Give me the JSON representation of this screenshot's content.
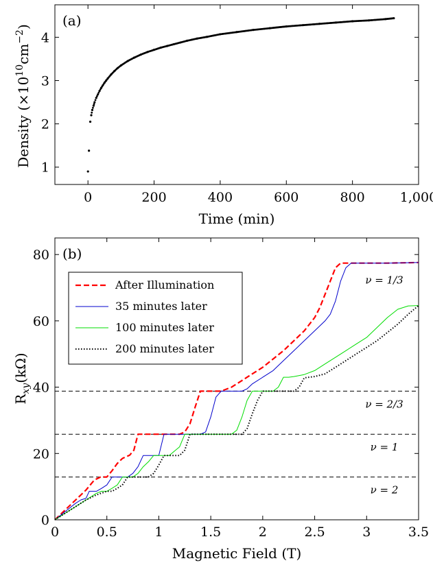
{
  "chart_data": [
    {
      "type": "scatter",
      "panel_label": "(a)",
      "xlabel": "Time (min)",
      "ylabel_text": "Density (×10",
      "ylabel_exp": "10",
      "ylabel_unit": "cm",
      "ylabel_unit_exp": "−2",
      "ylabel_close": ")",
      "xlim": [
        -100,
        1000
      ],
      "ylim": [
        0.6,
        4.75
      ],
      "xticks": [
        0,
        200,
        400,
        600,
        800,
        1000
      ],
      "xtick_labels": [
        "0",
        "200",
        "400",
        "600",
        "800",
        "1,000"
      ],
      "yticks": [
        1,
        2,
        3,
        4
      ],
      "ytick_labels": [
        "1",
        "2",
        "3",
        "4"
      ],
      "marker_color": "#000000",
      "points": {
        "x": [
          0,
          3,
          7,
          10,
          13,
          17,
          20,
          25,
          30,
          35,
          40,
          45,
          50,
          55,
          60,
          70,
          80,
          90,
          100,
          120,
          140,
          160,
          180,
          200,
          220,
          240,
          260,
          280,
          300,
          330,
          360,
          400,
          450,
          500,
          550,
          600,
          650,
          700,
          750,
          800,
          850,
          900,
          925
        ],
        "y": [
          0.9,
          1.38,
          2.05,
          2.2,
          2.32,
          2.42,
          2.5,
          2.6,
          2.68,
          2.76,
          2.83,
          2.89,
          2.95,
          3.0,
          3.05,
          3.14,
          3.22,
          3.29,
          3.35,
          3.45,
          3.53,
          3.6,
          3.66,
          3.71,
          3.76,
          3.8,
          3.84,
          3.88,
          3.92,
          3.97,
          4.01,
          4.07,
          4.12,
          4.17,
          4.21,
          4.25,
          4.28,
          4.31,
          4.34,
          4.37,
          4.39,
          4.42,
          4.44
        ]
      }
    },
    {
      "type": "line",
      "panel_label": "(b)",
      "xlabel": "Magnetic Field (T)",
      "ylabel_main": "R",
      "ylabel_sub": "xy",
      "ylabel_unit": "(kΩ)",
      "xlim": [
        0,
        3.5
      ],
      "ylim": [
        0,
        85
      ],
      "xticks": [
        0,
        0.5,
        1,
        1.5,
        2,
        2.5,
        3,
        3.5
      ],
      "xtick_labels": [
        "0",
        "0.5",
        "1",
        "1.5",
        "2",
        "2.5",
        "3",
        "3.5"
      ],
      "yticks": [
        0,
        20,
        40,
        60,
        80
      ],
      "ytick_labels": [
        "0",
        "20",
        "40",
        "60",
        "80"
      ],
      "reference_lines": [
        {
          "y": 38.8,
          "label": "ν = 2/3"
        },
        {
          "y": 25.8,
          "label": "ν = 1"
        },
        {
          "y": 12.9,
          "label": "ν = 2"
        }
      ],
      "top_annotation": {
        "label": "ν = 1/3",
        "y": 77.4
      },
      "series": [
        {
          "name": "After Illumination",
          "color": "#ff0000",
          "style": "dashed",
          "x": [
            0,
            0.1,
            0.2,
            0.3,
            0.38,
            0.44,
            0.5,
            0.55,
            0.6,
            0.65,
            0.72,
            0.76,
            0.8,
            0.84,
            0.9,
            1.0,
            1.1,
            1.2,
            1.25,
            1.3,
            1.35,
            1.4,
            1.5,
            1.6,
            1.7,
            1.8,
            1.9,
            2.0,
            2.1,
            2.2,
            2.3,
            2.4,
            2.5,
            2.55,
            2.6,
            2.65,
            2.7,
            2.75,
            2.8,
            3.0,
            3.2,
            3.5
          ],
          "y": [
            0,
            3,
            6,
            9,
            12,
            12.9,
            12.9,
            14.8,
            17,
            18.5,
            19.5,
            21,
            25.8,
            25.8,
            25.8,
            25.8,
            25.8,
            25.8,
            26.5,
            29,
            34,
            38.8,
            38.8,
            38.8,
            40,
            42,
            44,
            46,
            48.5,
            51,
            54,
            57,
            61,
            64,
            68,
            72,
            76,
            77.4,
            77.4,
            77.4,
            77.4,
            77.6
          ]
        },
        {
          "name": "35 minutes later",
          "color": "#0000cc",
          "style": "solid",
          "x": [
            0,
            0.1,
            0.2,
            0.25,
            0.3,
            0.33,
            0.4,
            0.45,
            0.5,
            0.55,
            0.6,
            0.65,
            0.7,
            0.75,
            0.8,
            0.85,
            0.9,
            0.95,
            1.0,
            1.05,
            1.1,
            1.2,
            1.3,
            1.4,
            1.45,
            1.5,
            1.55,
            1.6,
            1.7,
            1.8,
            1.85,
            1.9,
            2.0,
            2.1,
            2.2,
            2.3,
            2.4,
            2.5,
            2.6,
            2.65,
            2.7,
            2.75,
            2.8,
            2.85,
            2.9,
            3.0,
            3.2,
            3.5
          ],
          "y": [
            0,
            2.5,
            5,
            6,
            6.5,
            8.6,
            8.6,
            9.5,
            10.5,
            12.9,
            12.9,
            12.9,
            12.9,
            14,
            16,
            19.4,
            19.4,
            19.4,
            19.4,
            25.8,
            25.8,
            25.8,
            25.8,
            25.8,
            26.5,
            31,
            37,
            38.8,
            38.8,
            38.8,
            39.5,
            41,
            43,
            45,
            48,
            51,
            54,
            57,
            60,
            62,
            66,
            72,
            76,
            77.4,
            77.4,
            77.4,
            77.4,
            77.6
          ]
        },
        {
          "name": "100 minutes later",
          "color": "#00dd00",
          "style": "solid",
          "x": [
            0,
            0.1,
            0.2,
            0.3,
            0.4,
            0.45,
            0.5,
            0.55,
            0.6,
            0.65,
            0.7,
            0.75,
            0.8,
            0.85,
            0.9,
            0.95,
            1.0,
            1.05,
            1.1,
            1.2,
            1.25,
            1.3,
            1.4,
            1.5,
            1.6,
            1.7,
            1.75,
            1.8,
            1.85,
            1.9,
            1.95,
            2.0,
            2.1,
            2.15,
            2.2,
            2.25,
            2.3,
            2.4,
            2.5,
            2.6,
            2.7,
            2.8,
            2.9,
            3.0,
            3.1,
            3.2,
            3.3,
            3.4,
            3.5
          ],
          "y": [
            0,
            2,
            4,
            6,
            8,
            8.6,
            8.6,
            9.5,
            10.5,
            12.9,
            12.9,
            12.9,
            14,
            16,
            17.5,
            19.4,
            19.4,
            19.4,
            19.4,
            22,
            25.8,
            25.8,
            25.8,
            25.8,
            25.8,
            25.8,
            27,
            31,
            36,
            38.8,
            38.8,
            38.8,
            38.8,
            40,
            43,
            43,
            43.2,
            43.8,
            45,
            47,
            49,
            51,
            53,
            55,
            58,
            61,
            63.5,
            64.5,
            64.6
          ]
        },
        {
          "name": "200 minutes later",
          "color": "#000000",
          "style": "dotted",
          "x": [
            0,
            0.1,
            0.2,
            0.3,
            0.4,
            0.5,
            0.55,
            0.6,
            0.65,
            0.7,
            0.8,
            0.85,
            0.9,
            0.95,
            1.0,
            1.05,
            1.1,
            1.15,
            1.2,
            1.25,
            1.3,
            1.4,
            1.5,
            1.6,
            1.7,
            1.8,
            1.85,
            1.9,
            1.95,
            2.0,
            2.1,
            2.2,
            2.3,
            2.35,
            2.4,
            2.5,
            2.6,
            2.7,
            2.8,
            2.9,
            3.0,
            3.1,
            3.2,
            3.3,
            3.4,
            3.5
          ],
          "y": [
            0,
            2,
            4,
            6,
            7.5,
            8.6,
            8.6,
            9.5,
            10.5,
            12.9,
            12.9,
            12.9,
            12.9,
            14,
            16.5,
            19.4,
            19.4,
            19.4,
            19.4,
            21,
            25.8,
            25.8,
            25.8,
            25.8,
            25.8,
            25.8,
            27.5,
            32,
            36,
            38.8,
            38.8,
            38.8,
            38.8,
            40,
            42.8,
            43.2,
            44,
            46,
            48,
            50,
            52,
            54,
            56.5,
            59,
            62,
            64.6
          ]
        }
      ]
    }
  ]
}
